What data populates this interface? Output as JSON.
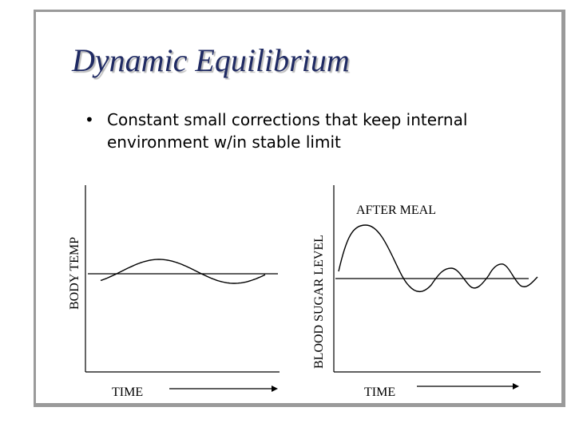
{
  "slide": {
    "title": "Dynamic Equilibrium",
    "bullet": "Constant small corrections that keep internal environment w/in stable limit"
  },
  "left_graph": {
    "ylabel": "BODY TEMP",
    "xlabel": "TIME"
  },
  "right_graph": {
    "ylabel": "BLOOD SUGAR LEVEL",
    "xlabel": "TIME",
    "annotation": "AFTER MEAL"
  },
  "colors": {
    "title": "#1f2a63",
    "frame": "#9a9a9a",
    "ink": "#000000"
  }
}
